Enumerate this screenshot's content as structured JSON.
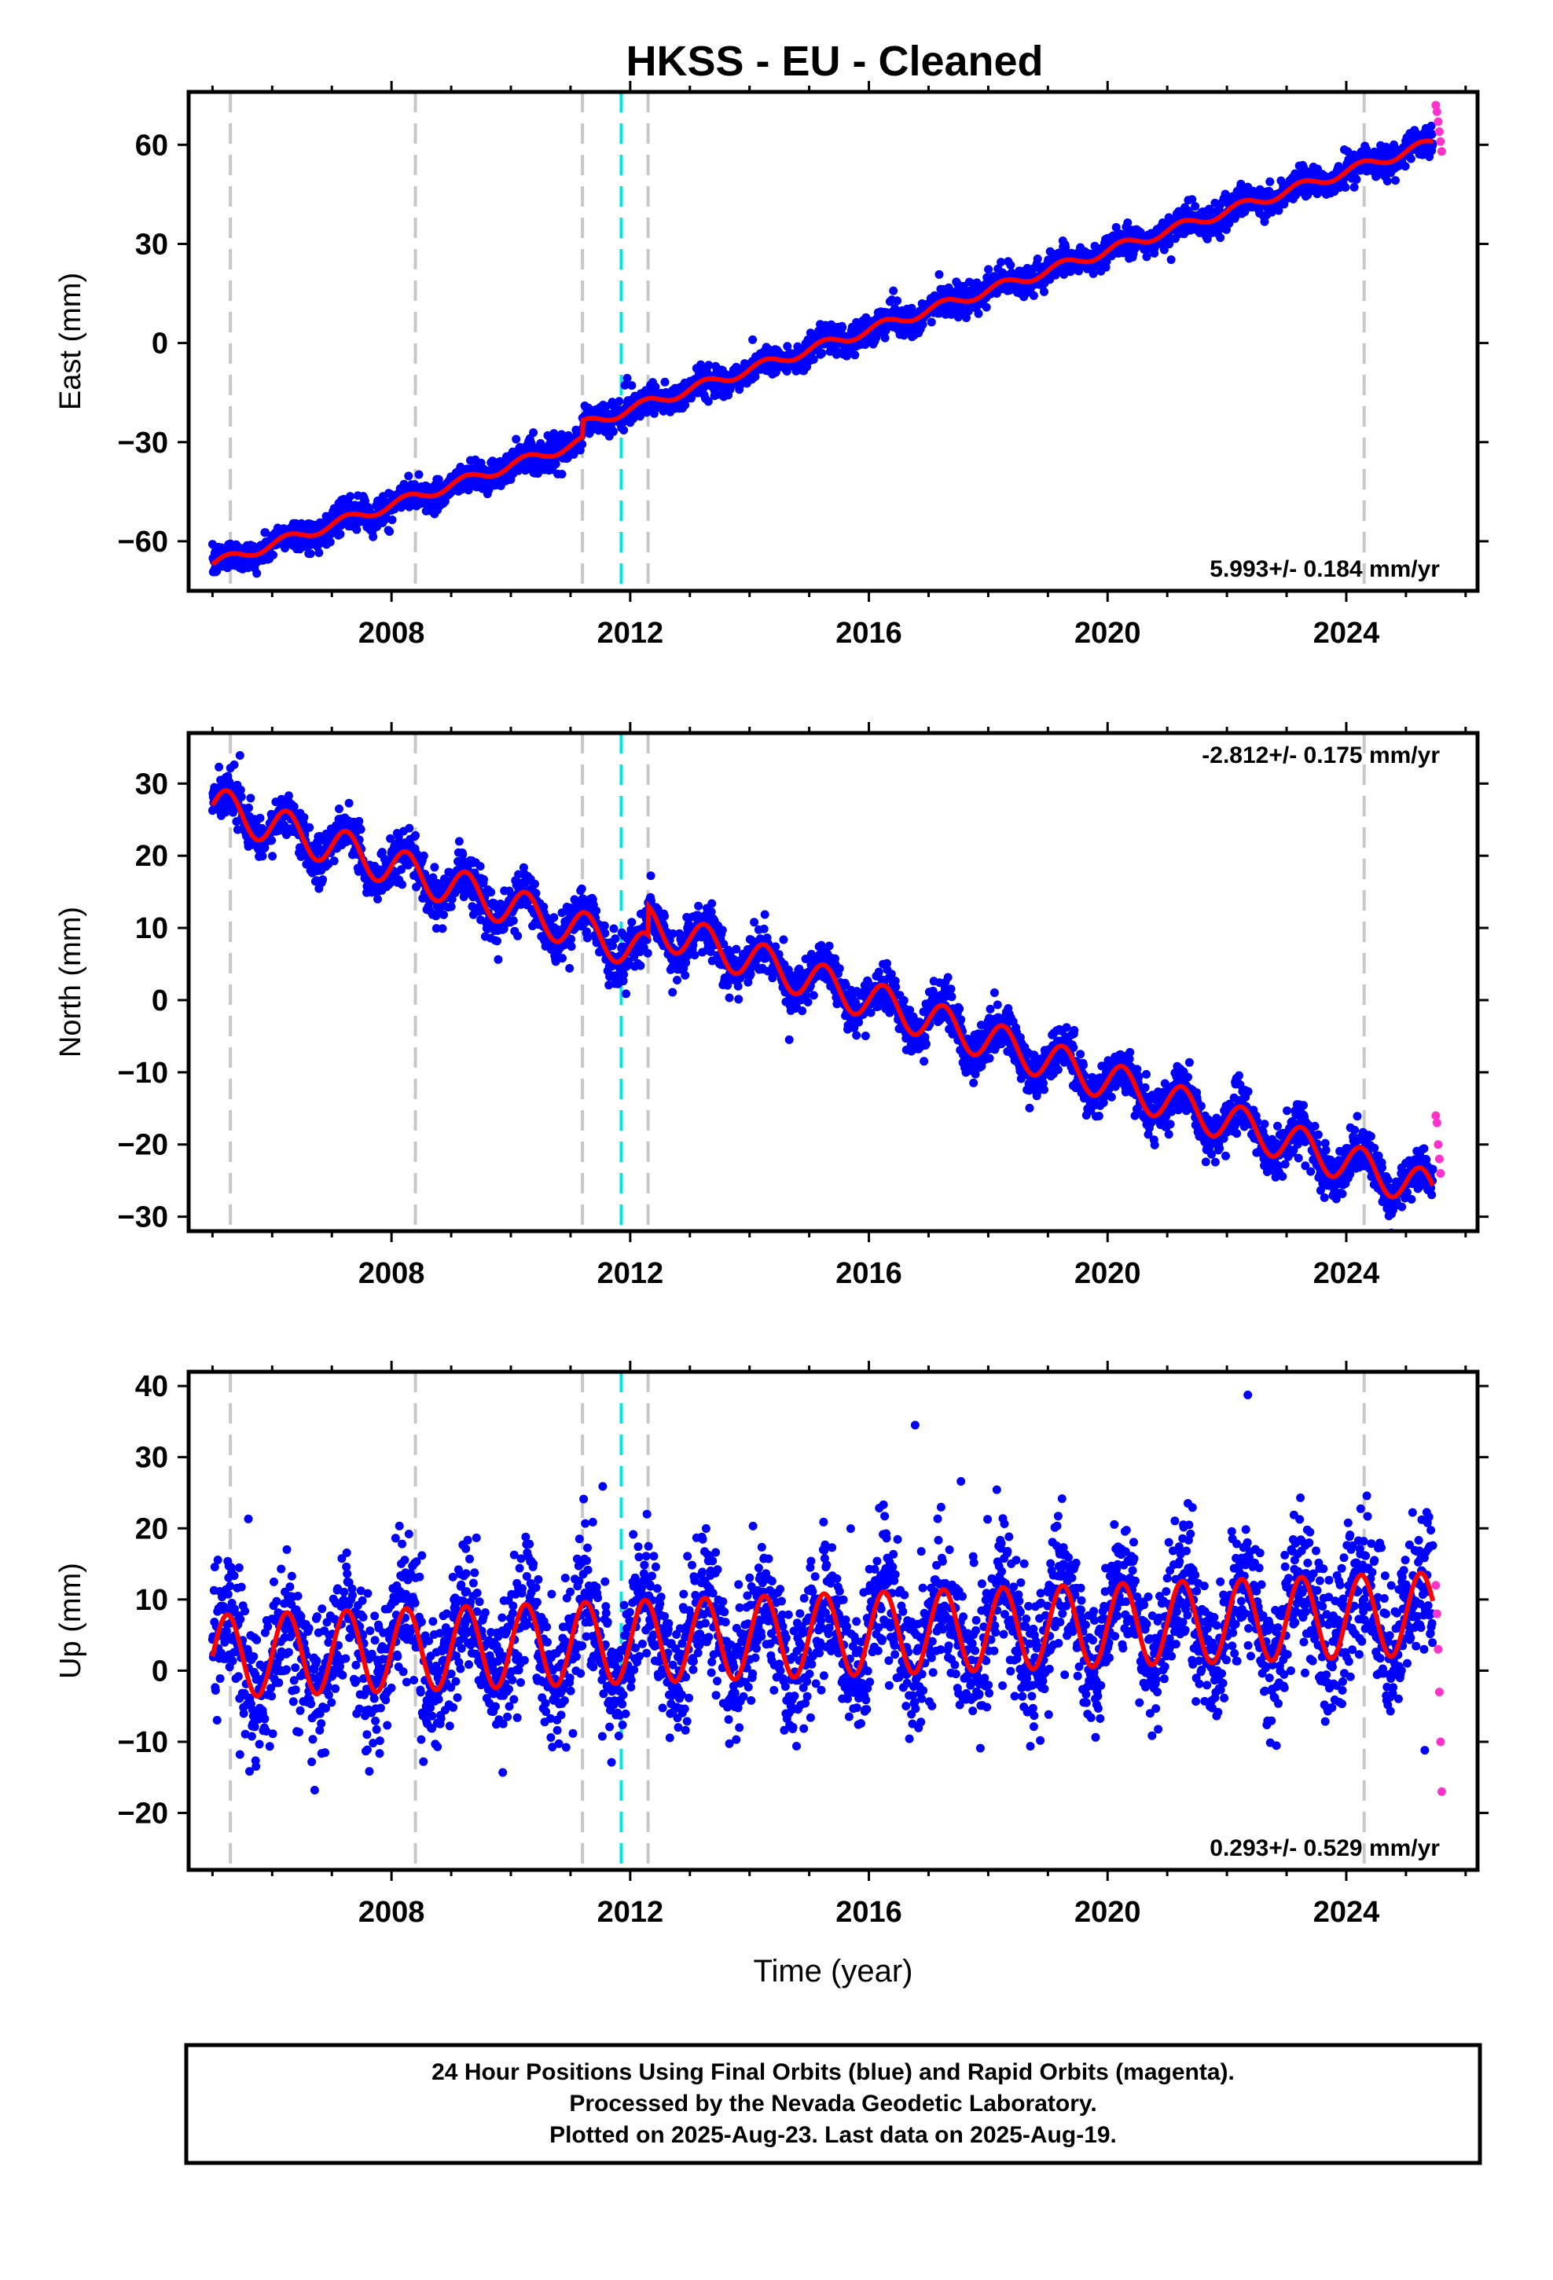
{
  "chart_data": [
    {
      "type": "scatter",
      "title": "HKSS  - EU - Cleaned",
      "ylabel": "East (mm)",
      "xlabel": "",
      "xlim": [
        2004.6,
        2026.2
      ],
      "ylim": [
        -75,
        76
      ],
      "x_ticks": [
        2008,
        2012,
        2016,
        2020,
        2024
      ],
      "y_ticks": [
        -60,
        -30,
        0,
        30,
        60
      ],
      "rate_text": "5.993+/- 0.184 mm/yr",
      "rate_position": "bottom-right",
      "event_lines_gray": [
        2005.3,
        2008.4,
        2011.2,
        2012.3,
        2024.3
      ],
      "event_lines_cyan": [
        2011.85
      ],
      "series": [
        {
          "name": "Final Orbits",
          "color": "#0000ff",
          "fit": {
            "value_at_2005": -67.0,
            "rate_mm_yr": 5.993,
            "annual_amp": 1.5,
            "offsets": [
              [
                2011.2,
                5.0
              ]
            ]
          },
          "scatter_sd": 2.2,
          "x_range": [
            2005.0,
            2025.45
          ]
        },
        {
          "name": "Rapid Orbits",
          "color": "#ff33cc",
          "x": [
            2025.5,
            2025.52,
            2025.54,
            2025.56,
            2025.58,
            2025.6
          ],
          "y": [
            72,
            70,
            67,
            64,
            61,
            58
          ]
        }
      ],
      "model_color": "#ff0000"
    },
    {
      "type": "scatter",
      "title": "",
      "ylabel": "North (mm)",
      "xlabel": "",
      "xlim": [
        2004.6,
        2026.2
      ],
      "ylim": [
        -32,
        37
      ],
      "x_ticks": [
        2008,
        2012,
        2016,
        2020,
        2024
      ],
      "y_ticks": [
        -30,
        -20,
        -10,
        0,
        10,
        20,
        30
      ],
      "rate_text": "-2.812+/- 0.175 mm/yr",
      "rate_position": "top-right",
      "event_lines_gray": [
        2005.3,
        2008.4,
        2011.2,
        2012.3,
        2024.3
      ],
      "event_lines_cyan": [
        2011.85
      ],
      "series": [
        {
          "name": "Final Orbits",
          "color": "#0000ff",
          "fit": {
            "value_at_2005": 27.0,
            "rate_mm_yr": -2.812,
            "annual_amp": 2.7,
            "offsets": [
              [
                2012.3,
                4.0
              ]
            ]
          },
          "scatter_sd": 1.6,
          "x_range": [
            2005.0,
            2025.45
          ]
        },
        {
          "name": "Rapid Orbits",
          "color": "#ff33cc",
          "x": [
            2025.5,
            2025.52,
            2025.54,
            2025.56,
            2025.58
          ],
          "y": [
            -16,
            -17,
            -20,
            -22,
            -24
          ]
        }
      ],
      "model_color": "#ff0000"
    },
    {
      "type": "scatter",
      "title": "",
      "ylabel": "Up (mm)",
      "xlabel": "Time (year)",
      "xlim": [
        2004.6,
        2026.2
      ],
      "ylim": [
        -28,
        42
      ],
      "x_ticks": [
        2008,
        2012,
        2016,
        2020,
        2024
      ],
      "y_ticks": [
        -20,
        -10,
        0,
        10,
        20,
        30,
        40
      ],
      "rate_text": "0.293+/- 0.529 mm/yr",
      "rate_position": "bottom-right",
      "event_lines_gray": [
        2005.3,
        2008.4,
        2011.2,
        2012.3,
        2024.3
      ],
      "event_lines_cyan": [
        2011.85
      ],
      "series": [
        {
          "name": "Final Orbits",
          "color": "#0000ff",
          "fit": {
            "value_at_2005": 2.0,
            "rate_mm_yr": 0.293,
            "annual_amp": 5.8,
            "offsets": []
          },
          "scatter_sd": 4.8,
          "x_range": [
            2005.0,
            2025.45
          ]
        },
        {
          "name": "Rapid Orbits",
          "color": "#ff33cc",
          "x": [
            2025.5,
            2025.52,
            2025.54,
            2025.56,
            2025.58,
            2025.6
          ],
          "y": [
            12,
            8,
            3,
            -3,
            -10,
            -17
          ]
        }
      ],
      "model_color": "#ff0000"
    }
  ],
  "footer": {
    "line1": "24 Hour Positions Using Final Orbits (blue) and Rapid Orbits (magenta).",
    "line2": "Processed by the Nevada Geodetic Laboratory.",
    "line3": "Plotted on 2025-Aug-23. Last data on 2025-Aug-19."
  }
}
